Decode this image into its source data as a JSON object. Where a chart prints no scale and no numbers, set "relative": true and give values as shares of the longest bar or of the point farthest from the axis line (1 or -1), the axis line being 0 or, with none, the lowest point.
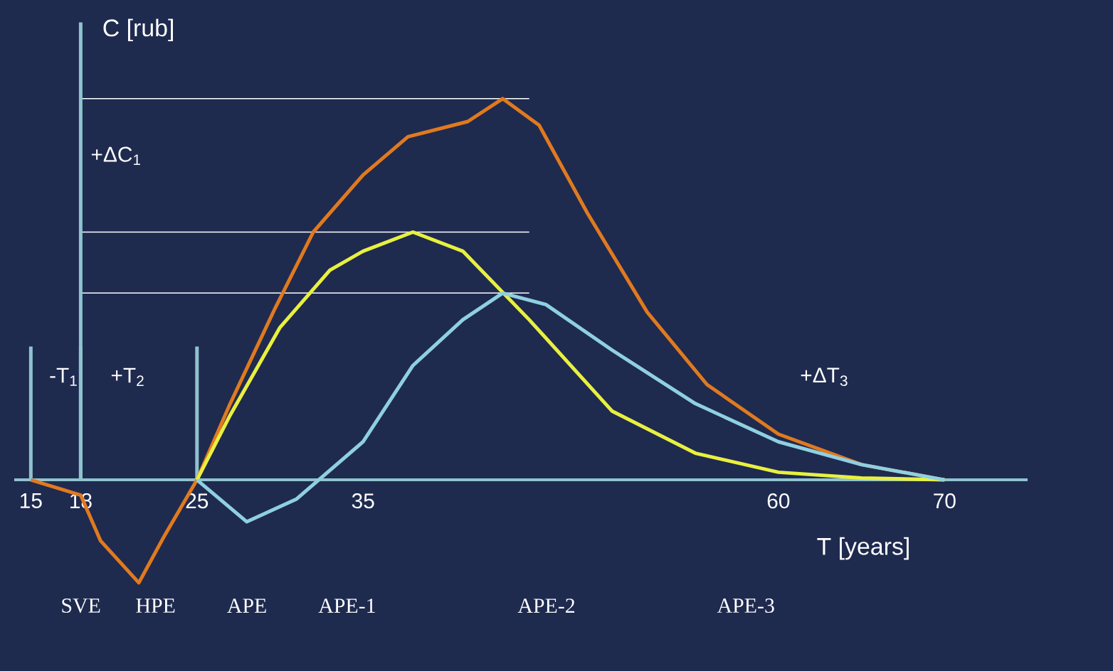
{
  "chart_data": {
    "type": "line",
    "relative": true,
    "xlabel": "T [years]",
    "ylabel": "C [rub]",
    "xlim": [
      14,
      75
    ],
    "xticks": [
      15,
      18,
      25,
      35,
      60,
      70
    ],
    "marker": "none",
    "line_style": "solid",
    "series": [
      {
        "color": "#e07a1f",
        "x": [
          15,
          18,
          19.2,
          21.5,
          23,
          25,
          27,
          29.7,
          32,
          35,
          37.7,
          41.3,
          43.4,
          45.6,
          48.5,
          52.1,
          55.7,
          60,
          65,
          70
        ],
        "values": [
          0,
          -0.04,
          -0.16,
          -0.27,
          -0.15,
          0,
          0.2,
          0.45,
          0.65,
          0.8,
          0.9,
          0.94,
          1.0,
          0.93,
          0.7,
          0.44,
          0.25,
          0.12,
          0.04,
          0
        ]
      },
      {
        "color": "#e8f040",
        "x": [
          25,
          27,
          30,
          33,
          35,
          38,
          41,
          45,
          50,
          55,
          60,
          65,
          70
        ],
        "values": [
          0,
          0.17,
          0.4,
          0.55,
          0.6,
          0.65,
          0.6,
          0.42,
          0.18,
          0.07,
          0.02,
          0.005,
          0
        ]
      },
      {
        "color": "#8fd0e0",
        "x": [
          25,
          28,
          31,
          35,
          38,
          41,
          43.4,
          46,
          50,
          55,
          60,
          65,
          70
        ],
        "values": [
          0,
          -0.11,
          -0.05,
          0.1,
          0.3,
          0.42,
          0.49,
          0.46,
          0.34,
          0.2,
          0.1,
          0.04,
          0
        ]
      }
    ],
    "ref_lines": [
      {
        "axis": "y",
        "value": 1.0,
        "color": "#ffffff"
      },
      {
        "axis": "y",
        "value": 0.65,
        "color": "#ffffff"
      },
      {
        "axis": "y",
        "value": 0.49,
        "color": "#ffffff"
      },
      {
        "axis": "x",
        "value": 15,
        "color": "#8fc3cf"
      },
      {
        "axis": "x",
        "value": 18,
        "color": "#8fc3cf"
      },
      {
        "axis": "x",
        "value": 25,
        "color": "#8fc3cf"
      }
    ],
    "annotations": [
      "+ΔC$_{1}$",
      "-T$_{1}$",
      "+T$_{2}$",
      "+ΔT$_{3}$",
      "SVE",
      "HPE",
      "APE",
      "APE-1",
      "APE-2",
      "APE-3"
    ]
  }
}
